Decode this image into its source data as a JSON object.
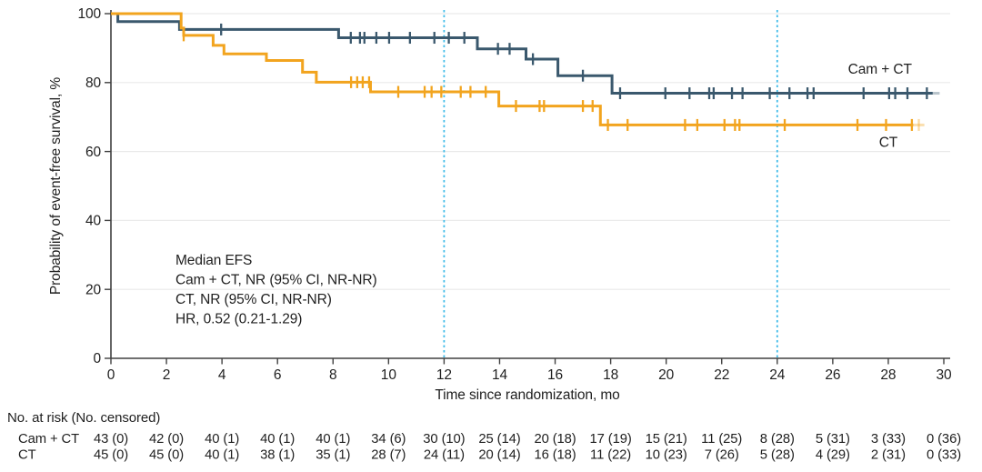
{
  "chart_data": {
    "type": "line",
    "variant": "kaplan-meier-step",
    "title": "",
    "xlabel": "Time since randomization, mo",
    "ylabel": "Probability of event-free survival, %",
    "xlim": [
      0,
      30
    ],
    "ylim": [
      0,
      100
    ],
    "x_ticks": [
      0,
      2,
      4,
      6,
      8,
      10,
      12,
      14,
      16,
      18,
      20,
      22,
      24,
      26,
      28,
      30
    ],
    "y_ticks": [
      0,
      20,
      40,
      60,
      80,
      100
    ],
    "grid": true,
    "legend_position": "inline-right-of-curves",
    "reference_lines_x": [
      12,
      24
    ],
    "annotation_lines": [
      "Median EFS",
      "Cam + CT, NR (95% CI, NR-NR)",
      "CT, NR (95% CI, NR-NR)",
      "HR, 0.52 (0.21-1.29)"
    ],
    "series": [
      {
        "name": "Cam + CT",
        "color": "#3A586D",
        "label_at": {
          "x": 27.7,
          "y": 82.6
        },
        "steps": [
          [
            0,
            100
          ],
          [
            0.25,
            97.7
          ],
          [
            2.47,
            95.4
          ],
          [
            8.2,
            93.0
          ],
          [
            13.2,
            89.8
          ],
          [
            14.95,
            86.8
          ],
          [
            16.1,
            82.0
          ],
          [
            18.05,
            76.9
          ]
        ],
        "solid_end": 29.6,
        "tail_end": 29.85,
        "tail_censor": null,
        "censors": [
          [
            3.97,
            95.4
          ],
          [
            8.64,
            93.0
          ],
          [
            8.97,
            93.0
          ],
          [
            9.13,
            93.0
          ],
          [
            9.56,
            93.0
          ],
          [
            10.02,
            93.0
          ],
          [
            10.77,
            93.0
          ],
          [
            11.65,
            93.0
          ],
          [
            12.17,
            93.0
          ],
          [
            12.73,
            93.0
          ],
          [
            13.94,
            89.8
          ],
          [
            14.36,
            89.8
          ],
          [
            15.2,
            86.8
          ],
          [
            17.0,
            82.0
          ],
          [
            18.34,
            76.9
          ],
          [
            19.97,
            76.9
          ],
          [
            20.84,
            76.9
          ],
          [
            21.55,
            76.9
          ],
          [
            21.71,
            76.9
          ],
          [
            22.37,
            76.9
          ],
          [
            22.75,
            76.9
          ],
          [
            23.73,
            76.9
          ],
          [
            24.44,
            76.9
          ],
          [
            25.09,
            76.9
          ],
          [
            25.31,
            76.9
          ],
          [
            27.11,
            76.9
          ],
          [
            28.03,
            76.9
          ],
          [
            28.25,
            76.9
          ],
          [
            28.69,
            76.9
          ],
          [
            29.39,
            76.9
          ]
        ]
      },
      {
        "name": "CT",
        "color": "#F2A41E",
        "label_at": {
          "x": 28.0,
          "y": 61.3
        },
        "steps": [
          [
            0,
            100
          ],
          [
            2.53,
            95.8
          ],
          [
            2.62,
            93.7
          ],
          [
            3.68,
            90.8
          ],
          [
            4.07,
            88.3
          ],
          [
            5.6,
            86.4
          ],
          [
            6.9,
            83.0
          ],
          [
            7.4,
            80.1
          ],
          [
            9.35,
            77.3
          ],
          [
            13.97,
            73.2
          ],
          [
            17.63,
            67.7
          ]
        ],
        "solid_end": 28.9,
        "tail_end": 29.3,
        "tail_censor": 29.1,
        "censors": [
          [
            2.62,
            93.7
          ],
          [
            8.65,
            80.1
          ],
          [
            8.87,
            80.1
          ],
          [
            9.07,
            80.1
          ],
          [
            9.3,
            80.1
          ],
          [
            10.35,
            77.3
          ],
          [
            11.3,
            77.3
          ],
          [
            11.55,
            77.3
          ],
          [
            11.9,
            77.3
          ],
          [
            12.6,
            77.3
          ],
          [
            12.95,
            77.3
          ],
          [
            13.5,
            77.3
          ],
          [
            14.59,
            73.2
          ],
          [
            15.44,
            73.2
          ],
          [
            15.6,
            73.2
          ],
          [
            17.0,
            73.2
          ],
          [
            17.35,
            73.2
          ],
          [
            17.9,
            67.7
          ],
          [
            18.61,
            67.7
          ],
          [
            20.68,
            67.7
          ],
          [
            21.12,
            67.7
          ],
          [
            22.1,
            67.7
          ],
          [
            22.48,
            67.7
          ],
          [
            22.64,
            67.7
          ],
          [
            24.27,
            67.7
          ],
          [
            26.89,
            67.7
          ],
          [
            27.92,
            67.7
          ],
          [
            28.85,
            67.7
          ]
        ]
      }
    ],
    "colors": {
      "grid": "#EAEAEA",
      "axis": "#404040",
      "reference_line": "#41BCE9",
      "text": "#1F1F1F"
    }
  },
  "risk_table": {
    "heading": "No. at risk (No. censored)",
    "rows": [
      {
        "label": "Cam + CT",
        "values": [
          "43 (0)",
          "42 (0)",
          "40 (1)",
          "40 (1)",
          "40 (1)",
          "34 (6)",
          "30 (10)",
          "25 (14)",
          "20 (18)",
          "17 (19)",
          "15 (21)",
          "11 (25)",
          "8 (28)",
          "5 (31)",
          "3 (33)",
          "0 (36)"
        ]
      },
      {
        "label": "CT",
        "values": [
          "45 (0)",
          "45 (0)",
          "40 (1)",
          "38 (1)",
          "35 (1)",
          "28 (7)",
          "24 (11)",
          "20 (14)",
          "16 (18)",
          "11 (22)",
          "10 (23)",
          "7 (26)",
          "5 (28)",
          "4 (29)",
          "2 (31)",
          "0 (33)"
        ]
      }
    ]
  }
}
